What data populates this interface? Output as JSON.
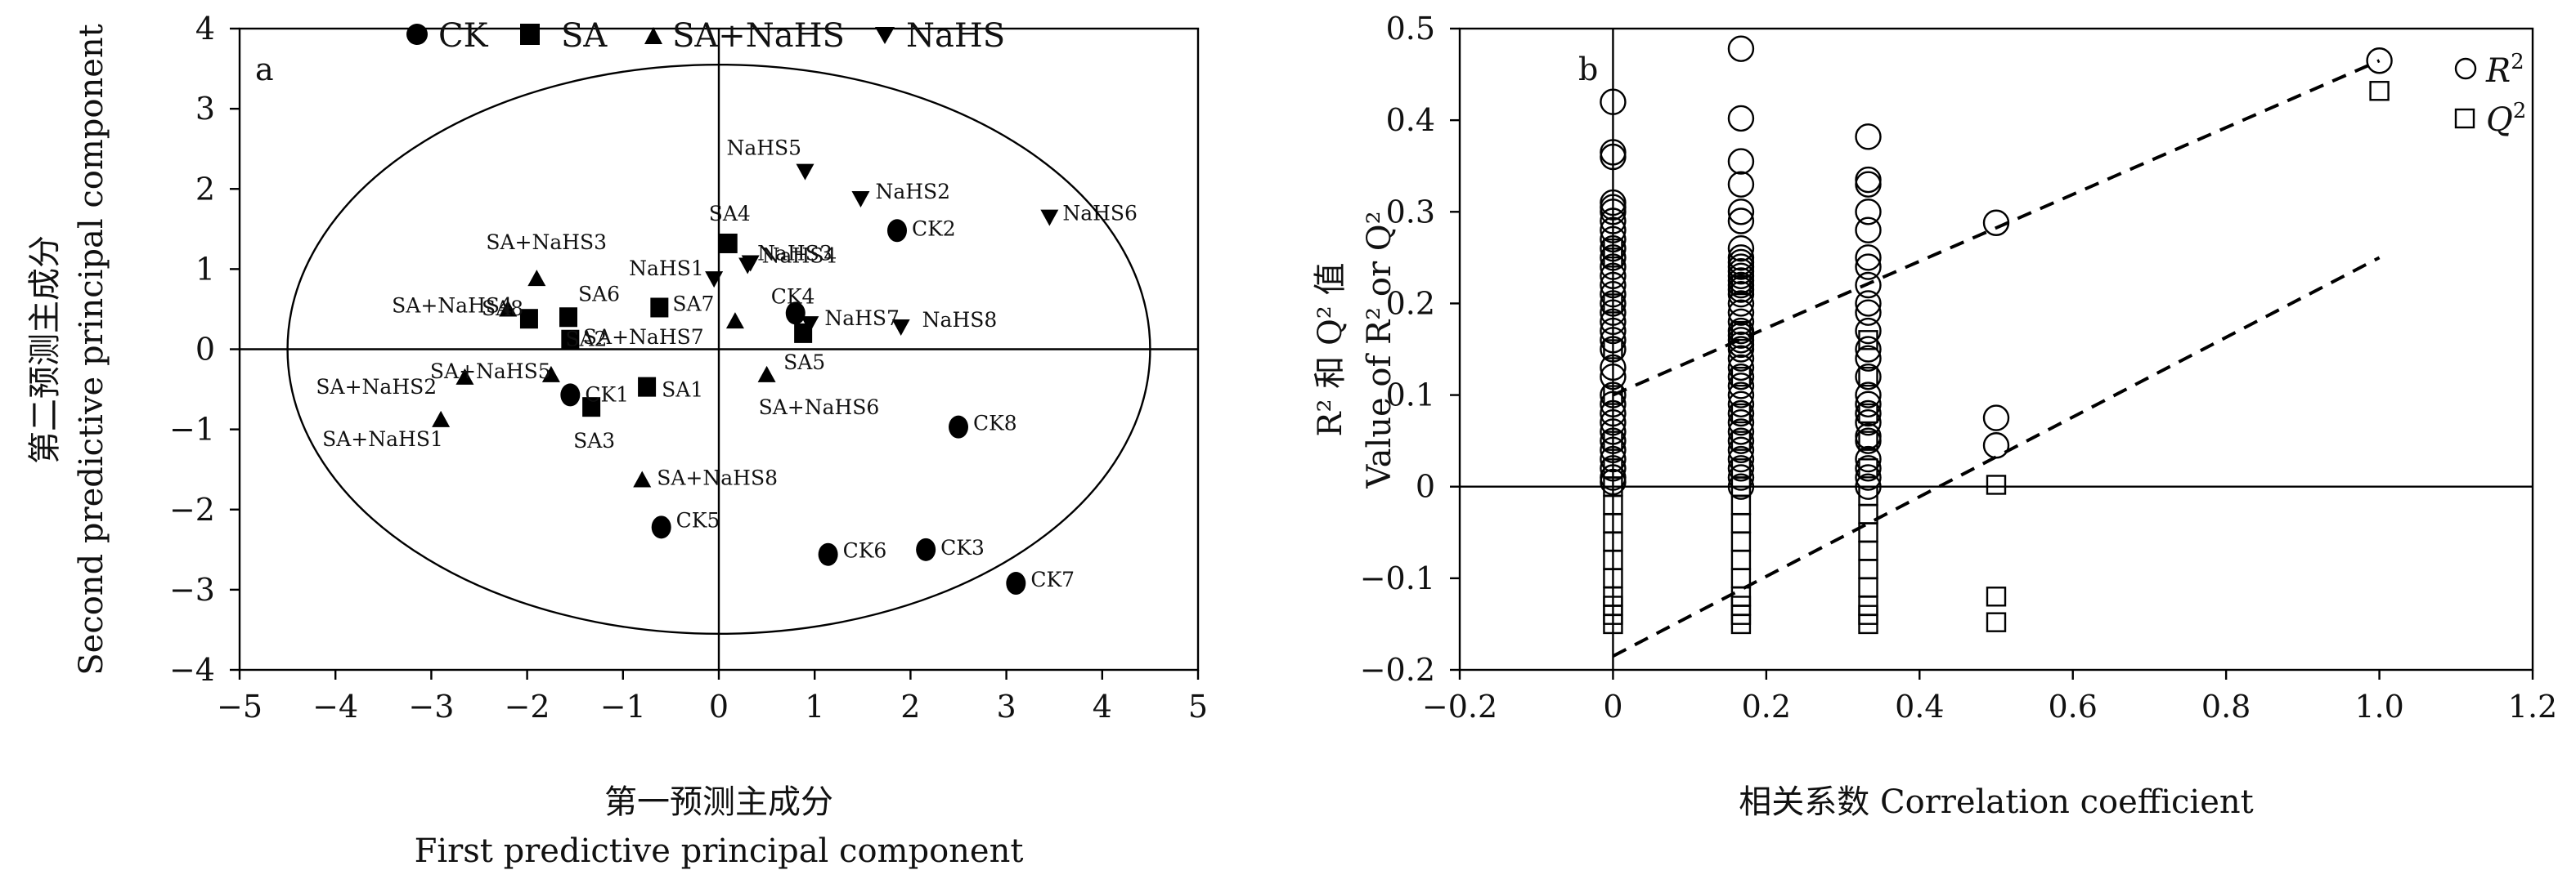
{
  "chart_data": [
    {
      "type": "scatter",
      "panel_label": "a",
      "xlabel_cn": "第一预测主成分",
      "xlabel_en": "First predictive principal component",
      "ylabel_cn": "第二预测主成分",
      "ylabel_en": "Second predictive principal component",
      "xlim": [
        -5,
        5
      ],
      "ylim": [
        -4,
        4
      ],
      "xticks": [
        "−5",
        "−4",
        "−3",
        "−2",
        "−1",
        "0",
        "1",
        "2",
        "3",
        "4",
        "5"
      ],
      "yticks": [
        "4",
        "3",
        "2",
        "1",
        "0",
        "−1",
        "−2",
        "−3",
        "−4"
      ],
      "ellipse": {
        "cx": 0,
        "cy": 0,
        "rx": 4.5,
        "ry": 3.55
      },
      "legend": [
        {
          "name": "CK",
          "marker": "circle"
        },
        {
          "name": "SA",
          "marker": "square"
        },
        {
          "name": "SA+NaHS",
          "marker": "triangle-up"
        },
        {
          "name": "NaHS",
          "marker": "triangle-down"
        }
      ],
      "points": [
        {
          "label": "CK1",
          "group": "CK",
          "x": -1.55,
          "y": -0.57
        },
        {
          "label": "CK2",
          "group": "CK",
          "x": 1.86,
          "y": 1.48
        },
        {
          "label": "CK3",
          "group": "CK",
          "x": 2.16,
          "y": -2.5
        },
        {
          "label": "CK4",
          "group": "CK",
          "x": 0.8,
          "y": 0.45
        },
        {
          "label": "CK5",
          "group": "CK",
          "x": -0.6,
          "y": -2.22
        },
        {
          "label": "CK6",
          "group": "CK",
          "x": 1.14,
          "y": -2.56
        },
        {
          "label": "CK7",
          "group": "CK",
          "x": 3.1,
          "y": -2.92
        },
        {
          "label": "CK8",
          "group": "CK",
          "x": 2.5,
          "y": -0.97
        },
        {
          "label": "SA1",
          "group": "SA",
          "x": -0.75,
          "y": -0.47
        },
        {
          "label": "SA2",
          "group": "SA",
          "x": -1.55,
          "y": 0.12
        },
        {
          "label": "SA3",
          "group": "SA",
          "x": -1.33,
          "y": -0.72
        },
        {
          "label": "SA4",
          "group": "SA",
          "x": 0.1,
          "y": 1.32
        },
        {
          "label": "SA5",
          "group": "SA",
          "x": 0.88,
          "y": 0.2
        },
        {
          "label": "SA6",
          "group": "SA",
          "x": -1.57,
          "y": 0.4
        },
        {
          "label": "SA7",
          "group": "SA",
          "x": -0.62,
          "y": 0.52
        },
        {
          "label": "SA8",
          "group": "SA",
          "x": -1.98,
          "y": 0.38
        },
        {
          "label": "SA+NaHS1",
          "group": "SA+NaHS",
          "x": -2.9,
          "y": -0.88
        },
        {
          "label": "SA+NaHS2",
          "group": "SA+NaHS",
          "x": -2.65,
          "y": -0.35
        },
        {
          "label": "SA+NaHS3",
          "group": "SA+NaHS",
          "x": -1.9,
          "y": 0.88
        },
        {
          "label": "SA+NaHS4",
          "group": "SA+NaHS",
          "x": -2.2,
          "y": 0.5
        },
        {
          "label": "SA+NaHS5",
          "group": "SA+NaHS",
          "x": -1.75,
          "y": -0.32
        },
        {
          "label": "SA+NaHS6",
          "group": "SA+NaHS",
          "x": 0.5,
          "y": -0.32
        },
        {
          "label": "SA+NaHS7",
          "group": "SA+NaHS",
          "x": 0.17,
          "y": 0.35
        },
        {
          "label": "SA+NaHS8",
          "group": "SA+NaHS",
          "x": -0.8,
          "y": -1.63
        },
        {
          "label": "NaHS1",
          "group": "NaHS",
          "x": -0.05,
          "y": 0.88
        },
        {
          "label": "NaHS2",
          "group": "NaHS",
          "x": 1.48,
          "y": 1.88
        },
        {
          "label": "NaHS3",
          "group": "NaHS",
          "x": 0.3,
          "y": 1.05
        },
        {
          "label": "NaHS4",
          "group": "NaHS",
          "x": 0.33,
          "y": 1.08
        },
        {
          "label": "NaHS5",
          "group": "NaHS",
          "x": 0.9,
          "y": 2.22
        },
        {
          "label": "NaHS6",
          "group": "NaHS",
          "x": 3.45,
          "y": 1.65
        },
        {
          "label": "NaHS7",
          "group": "NaHS",
          "x": 0.95,
          "y": 0.32
        },
        {
          "label": "NaHS8",
          "group": "NaHS",
          "x": 1.9,
          "y": 0.28
        }
      ]
    },
    {
      "type": "scatter",
      "panel_label": "b",
      "xlabel": "相关系数 Correlation coefficient",
      "ylabel_cn": "R² 和 Q² 值",
      "ylabel_en": "Value of R² or Q²",
      "xlim": [
        -0.2,
        1.2
      ],
      "ylim": [
        -0.2,
        0.5
      ],
      "xticks": [
        "−0.2",
        "0",
        "0.2",
        "0.4",
        "0.6",
        "0.8",
        "1.0",
        "1.2"
      ],
      "yticks": [
        "0.5",
        "0.4",
        "0.3",
        "0.2",
        "0.1",
        "0",
        "−0.1",
        "−0.2"
      ],
      "legend": [
        {
          "name": "R",
          "sup": "2",
          "marker": "circle-open"
        },
        {
          "name": "Q",
          "sup": "2",
          "marker": "square-open"
        }
      ],
      "series": [
        {
          "name": "R2",
          "marker": "circle-open",
          "points": [
            {
              "x": 0,
              "values": [
                0.42,
                0.365,
                0.36,
                0.31,
                0.305,
                0.3,
                0.29,
                0.28,
                0.27,
                0.26,
                0.25,
                0.24,
                0.23,
                0.22,
                0.21,
                0.2,
                0.19,
                0.18,
                0.17,
                0.16,
                0.15,
                0.13,
                0.12,
                0.1,
                0.09,
                0.08,
                0.07,
                0.06,
                0.05,
                0.04,
                0.03,
                0.02,
                0.01,
                0.005
              ]
            },
            {
              "x": 0.167,
              "values": [
                0.478,
                0.402,
                0.355,
                0.33,
                0.3,
                0.29,
                0.26,
                0.25,
                0.245,
                0.24,
                0.235,
                0.23,
                0.225,
                0.22,
                0.215,
                0.21,
                0.2,
                0.19,
                0.18,
                0.17,
                0.165,
                0.16,
                0.155,
                0.15,
                0.14,
                0.13,
                0.12,
                0.11,
                0.1,
                0.09,
                0.08,
                0.07,
                0.06,
                0.05,
                0.04,
                0.03,
                0.02,
                0.01,
                0.0
              ]
            },
            {
              "x": 0.333,
              "values": [
                0.382,
                0.335,
                0.33,
                0.3,
                0.28,
                0.25,
                0.24,
                0.22,
                0.2,
                0.19,
                0.17,
                0.15,
                0.14,
                0.12,
                0.1,
                0.09,
                0.08,
                0.07,
                0.055,
                0.05,
                0.03,
                0.02,
                0.01,
                0.0
              ]
            },
            {
              "x": 0.5,
              "values": [
                0.288,
                0.075,
                0.045
              ]
            },
            {
              "x": 1.0,
              "values": [
                0.465
              ]
            }
          ]
        },
        {
          "name": "Q2",
          "marker": "square-open",
          "points": [
            {
              "x": 0,
              "values": [
                0.26,
                0.25,
                0.2,
                0.15,
                0.1,
                0.05,
                0.02,
                0.0,
                -0.02,
                -0.04,
                -0.06,
                -0.08,
                -0.1,
                -0.12,
                -0.13,
                -0.14,
                -0.15
              ]
            },
            {
              "x": 0.167,
              "values": [
                0.22,
                0.17,
                0.12,
                0.08,
                0.05,
                0.02,
                0.0,
                -0.02,
                -0.04,
                -0.06,
                -0.08,
                -0.1,
                -0.12,
                -0.13,
                -0.14,
                -0.15
              ]
            },
            {
              "x": 0.333,
              "values": [
                0.16,
                0.12,
                0.08,
                0.05,
                0.02,
                -0.01,
                -0.03,
                -0.05,
                -0.07,
                -0.09,
                -0.11,
                -0.13,
                -0.14,
                -0.15
              ]
            },
            {
              "x": 0.5,
              "values": [
                0.002,
                -0.12,
                -0.148
              ]
            },
            {
              "x": 1.0,
              "values": [
                0.432
              ]
            }
          ]
        }
      ],
      "trendlines": [
        {
          "name": "R2",
          "x": [
            0,
            1.0
          ],
          "y": [
            0.1,
            0.465
          ]
        },
        {
          "name": "Q2",
          "x": [
            0,
            1.0
          ],
          "y": [
            -0.185,
            0.25
          ]
        }
      ]
    }
  ]
}
